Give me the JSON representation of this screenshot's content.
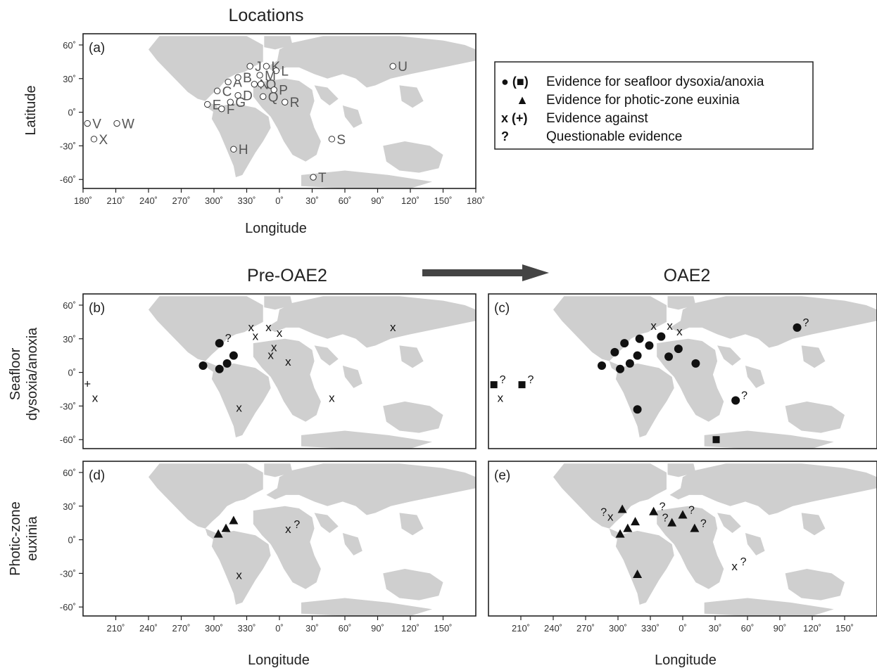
{
  "top_title": "Locations",
  "pre_title": "Pre-OAE2",
  "oae_title": "OAE2",
  "latitude_label": "Latitude",
  "longitude_label": "Longitude",
  "row_label_seafloor": [
    "Seafloor",
    "dysoxia/anoxia"
  ],
  "row_label_photic": [
    "Photic-zone",
    "euxinia"
  ],
  "legend": {
    "items": [
      {
        "symbol": "● (■)",
        "text": "Evidence for seafloor dysoxia/anoxia"
      },
      {
        "symbol": "▲",
        "text": "Evidence for photic-zone euxinia"
      },
      {
        "symbol": "x (+)",
        "text": "Evidence against"
      },
      {
        "symbol": "?",
        "text": "Questionable evidence"
      }
    ]
  },
  "colors": {
    "land": "#cfcfcf",
    "frame": "#222222",
    "ocean": "#ffffff",
    "arrow": "#444444"
  },
  "lat_ticks": [
    60,
    30,
    0,
    -30,
    -60
  ],
  "lon_ticks_full": [
    180,
    210,
    240,
    270,
    300,
    330,
    0,
    30,
    60,
    90,
    120,
    150,
    180
  ],
  "lon_ticks_partial": [
    210,
    240,
    270,
    300,
    330,
    0,
    30,
    60,
    90,
    120,
    150
  ],
  "panels": [
    {
      "id": "a",
      "label": "(a)"
    },
    {
      "id": "b",
      "label": "(b)"
    },
    {
      "id": "c",
      "label": "(c)"
    },
    {
      "id": "d",
      "label": "(d)"
    },
    {
      "id": "e",
      "label": "(e)"
    }
  ],
  "sites": [
    {
      "id": "A",
      "lon": 313,
      "lat": 27
    },
    {
      "id": "B",
      "lon": 322,
      "lat": 31
    },
    {
      "id": "C",
      "lon": 303,
      "lat": 19
    },
    {
      "id": "D",
      "lon": 322,
      "lat": 15
    },
    {
      "id": "E",
      "lon": 294,
      "lat": 7
    },
    {
      "id": "F",
      "lon": 307,
      "lat": 3
    },
    {
      "id": "G",
      "lon": 315,
      "lat": 9
    },
    {
      "id": "H",
      "lon": 318,
      "lat": -33
    },
    {
      "id": "J",
      "lon": 333,
      "lat": 41
    },
    {
      "id": "K",
      "lon": 348,
      "lat": 41
    },
    {
      "id": "L",
      "lon": 357,
      "lat": 37
    },
    {
      "id": "M",
      "lon": 342,
      "lat": 33
    },
    {
      "id": "N",
      "lon": 337,
      "lat": 25
    },
    {
      "id": "O",
      "lon": 343,
      "lat": 25
    },
    {
      "id": "P",
      "lon": 355,
      "lat": 20
    },
    {
      "id": "Q",
      "lon": 345,
      "lat": 14
    },
    {
      "id": "R",
      "lon": 5,
      "lat": 9
    },
    {
      "id": "S",
      "lon": 48,
      "lat": -24
    },
    {
      "id": "T",
      "lon": 31,
      "lat": -58
    },
    {
      "id": "U",
      "lon": 104,
      "lat": 41
    },
    {
      "id": "V",
      "lon": 184,
      "lat": -10
    },
    {
      "id": "W",
      "lon": 211,
      "lat": -10
    },
    {
      "id": "X",
      "lon": 190,
      "lat": -24
    }
  ],
  "panel_b_marks": [
    {
      "type": "circle",
      "lon": 305,
      "lat": 26,
      "q": true
    },
    {
      "type": "circle",
      "lon": 290,
      "lat": 6
    },
    {
      "type": "circle",
      "lon": 305,
      "lat": 3
    },
    {
      "type": "circle",
      "lon": 312,
      "lat": 8
    },
    {
      "type": "circle",
      "lon": 318,
      "lat": 15
    },
    {
      "type": "x",
      "lon": 334,
      "lat": 40
    },
    {
      "type": "x",
      "lon": 338,
      "lat": 32
    },
    {
      "type": "x",
      "lon": 350,
      "lat": 40
    },
    {
      "type": "x",
      "lon": 360,
      "lat": 35
    },
    {
      "type": "x",
      "lon": 355,
      "lat": 22
    },
    {
      "type": "x",
      "lon": 352,
      "lat": 15
    },
    {
      "type": "x",
      "lon": 8,
      "lat": 9
    },
    {
      "type": "x",
      "lon": 104,
      "lat": 40
    },
    {
      "type": "x",
      "lon": 48,
      "lat": -23
    },
    {
      "type": "x",
      "lon": 323,
      "lat": -32
    },
    {
      "type": "x",
      "lon": 191,
      "lat": -23
    },
    {
      "type": "plus",
      "lon": 184,
      "lat": -10
    }
  ],
  "panel_c_marks": [
    {
      "type": "circle",
      "lon": 285,
      "lat": 6
    },
    {
      "type": "circle",
      "lon": 297,
      "lat": 18
    },
    {
      "type": "circle",
      "lon": 306,
      "lat": 26
    },
    {
      "type": "circle",
      "lon": 302,
      "lat": 3
    },
    {
      "type": "circle",
      "lon": 311,
      "lat": 8
    },
    {
      "type": "circle",
      "lon": 318,
      "lat": 15
    },
    {
      "type": "circle",
      "lon": 320,
      "lat": 30
    },
    {
      "type": "circle",
      "lon": 329,
      "lat": 24
    },
    {
      "type": "circle",
      "lon": 340,
      "lat": 32
    },
    {
      "type": "circle",
      "lon": 347,
      "lat": 14
    },
    {
      "type": "circle",
      "lon": 356,
      "lat": 21
    },
    {
      "type": "circle",
      "lon": 12,
      "lat": 8
    },
    {
      "type": "circle",
      "lon": 318,
      "lat": -33
    },
    {
      "type": "circle",
      "lon": 106,
      "lat": 40,
      "q": true
    },
    {
      "type": "circle",
      "lon": 49,
      "lat": -25,
      "q": true
    },
    {
      "type": "square",
      "lon": 185,
      "lat": -11,
      "q": true
    },
    {
      "type": "square",
      "lon": 211,
      "lat": -11,
      "q": true
    },
    {
      "type": "square",
      "lon": 31,
      "lat": -60
    },
    {
      "type": "x",
      "lon": 333,
      "lat": 41
    },
    {
      "type": "x",
      "lon": 348,
      "lat": 41
    },
    {
      "type": "x",
      "lon": 357,
      "lat": 36
    },
    {
      "type": "x",
      "lon": 191,
      "lat": -23
    }
  ],
  "panel_d_marks": [
    {
      "type": "triangle",
      "lon": 304,
      "lat": 5
    },
    {
      "type": "triangle",
      "lon": 311,
      "lat": 10
    },
    {
      "type": "triangle",
      "lon": 318,
      "lat": 17
    },
    {
      "type": "x",
      "lon": 8,
      "lat": 9,
      "q": true
    },
    {
      "type": "x",
      "lon": 323,
      "lat": -32
    }
  ],
  "panel_e_marks": [
    {
      "type": "triangle",
      "lon": 302,
      "lat": 5
    },
    {
      "type": "triangle",
      "lon": 309,
      "lat": 10
    },
    {
      "type": "triangle",
      "lon": 316,
      "lat": 16
    },
    {
      "type": "triangle",
      "lon": 304,
      "lat": 27
    },
    {
      "type": "triangle",
      "lon": 333,
      "lat": 25,
      "q": true
    },
    {
      "type": "triangle",
      "lon": 350,
      "lat": 15,
      "q2": true
    },
    {
      "type": "triangle",
      "lon": 360,
      "lat": 22,
      "q": true
    },
    {
      "type": "triangle",
      "lon": 11,
      "lat": 10,
      "q": true
    },
    {
      "type": "triangle",
      "lon": 318,
      "lat": -31
    },
    {
      "type": "x",
      "lon": 293,
      "lat": 20,
      "qpre": true
    },
    {
      "type": "x",
      "lon": 48,
      "lat": -24,
      "q": true
    }
  ]
}
